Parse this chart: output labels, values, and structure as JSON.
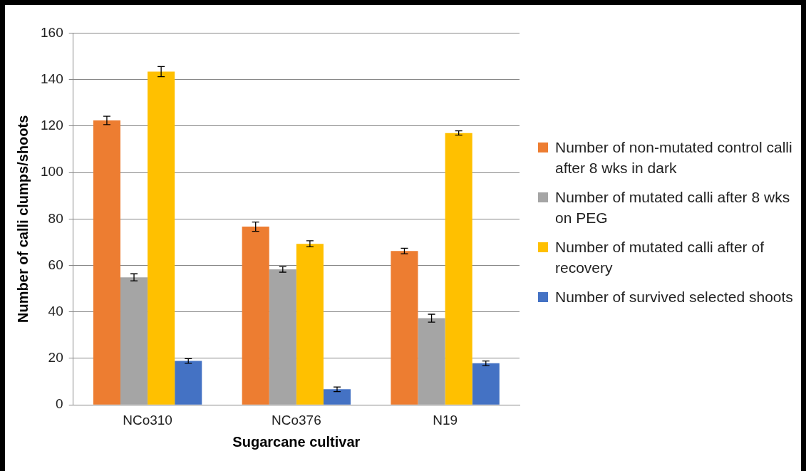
{
  "chart_data": {
    "type": "bar",
    "xlabel": "Sugarcane cultivar",
    "ylabel": "Number of calli clumps/shoots",
    "categories": [
      "NCo310",
      "NCo376",
      "N19"
    ],
    "series": [
      {
        "name": "Number of non-mutated control calli after 8 wks in dark",
        "color": "#ed7d31",
        "values": [
          122.4,
          76.7,
          66.2
        ],
        "errors": [
          1.8,
          2,
          1.2
        ]
      },
      {
        "name": "Number of mutated calli after 8 wks on PEG",
        "color": "#a5a5a5",
        "values": [
          54.9,
          58.3,
          37.3
        ],
        "errors": [
          1.5,
          1.2,
          1.7
        ]
      },
      {
        "name": "Number of mutated calli after of recovery",
        "color": "#ffc000",
        "values": [
          143.4,
          69.3,
          117
        ],
        "errors": [
          2.2,
          1.3,
          0.9
        ]
      },
      {
        "name": "Number of survived selected shoots",
        "color": "#4472c4",
        "values": [
          18.9,
          6.7,
          17.9
        ],
        "errors": [
          1,
          1,
          1
        ]
      }
    ],
    "ylim": [
      0,
      160
    ],
    "yticks": [
      0,
      20,
      40,
      60,
      80,
      100,
      120,
      140,
      160
    ],
    "grid": "y",
    "legend": "right"
  }
}
